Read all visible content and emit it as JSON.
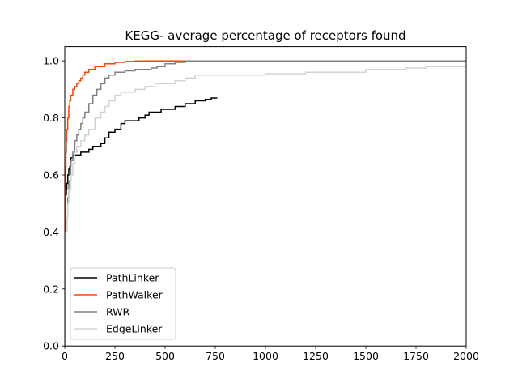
{
  "chart_data": {
    "type": "line",
    "title": "KEGG- average percentage of receptors found",
    "xlabel": "",
    "ylabel": "",
    "xlim": [
      0,
      2000
    ],
    "ylim": [
      0,
      1.05
    ],
    "xticks": [
      0,
      250,
      500,
      750,
      1000,
      1250,
      1500,
      1750,
      2000
    ],
    "yticks": [
      0.0,
      0.2,
      0.4,
      0.6,
      0.8,
      1.0
    ],
    "xtick_labels": [
      "0",
      "250",
      "500",
      "750",
      "1000",
      "1250",
      "1500",
      "1750",
      "2000"
    ],
    "ytick_labels": [
      "0.0",
      "0.2",
      "0.4",
      "0.6",
      "0.8",
      "1.0"
    ],
    "grid": false,
    "legend_position": "lower-left",
    "series": [
      {
        "name": "PathLinker",
        "color": "#000000",
        "x": [
          0,
          1,
          3,
          5,
          8,
          10,
          15,
          20,
          25,
          30,
          40,
          50,
          60,
          80,
          100,
          120,
          140,
          160,
          180,
          200,
          220,
          250,
          280,
          300,
          320,
          350,
          370,
          400,
          420,
          450,
          480,
          500,
          550,
          600,
          650,
          700,
          730,
          760
        ],
        "values": [
          0.0,
          0.45,
          0.5,
          0.53,
          0.55,
          0.57,
          0.6,
          0.62,
          0.63,
          0.66,
          0.67,
          0.67,
          0.67,
          0.68,
          0.68,
          0.69,
          0.7,
          0.7,
          0.71,
          0.73,
          0.75,
          0.76,
          0.78,
          0.79,
          0.79,
          0.79,
          0.8,
          0.81,
          0.82,
          0.82,
          0.83,
          0.83,
          0.84,
          0.85,
          0.86,
          0.865,
          0.87,
          0.87
        ]
      },
      {
        "name": "PathWalker",
        "color": "#ff4500",
        "x": [
          0,
          1,
          2,
          4,
          6,
          8,
          10,
          15,
          20,
          25,
          30,
          40,
          50,
          60,
          70,
          80,
          90,
          100,
          120,
          150,
          200,
          250,
          300,
          350,
          400,
          500,
          600,
          700,
          800,
          2000
        ],
        "values": [
          0.0,
          0.45,
          0.55,
          0.63,
          0.68,
          0.72,
          0.76,
          0.8,
          0.84,
          0.86,
          0.88,
          0.9,
          0.91,
          0.92,
          0.93,
          0.94,
          0.95,
          0.96,
          0.97,
          0.98,
          0.99,
          0.995,
          0.998,
          1.0,
          1.0,
          1.0,
          1.0,
          1.0,
          1.0,
          1.0
        ]
      },
      {
        "name": "RWR",
        "color": "#808080",
        "x": [
          0,
          2,
          5,
          10,
          15,
          20,
          30,
          40,
          50,
          60,
          70,
          80,
          90,
          100,
          120,
          140,
          160,
          180,
          200,
          220,
          250,
          300,
          350,
          400,
          430,
          460,
          500,
          550,
          600,
          700,
          800,
          1000,
          2000
        ],
        "values": [
          0.0,
          0.3,
          0.4,
          0.45,
          0.52,
          0.58,
          0.65,
          0.68,
          0.72,
          0.74,
          0.76,
          0.78,
          0.8,
          0.82,
          0.85,
          0.88,
          0.9,
          0.92,
          0.94,
          0.95,
          0.96,
          0.965,
          0.97,
          0.97,
          0.975,
          0.98,
          0.99,
          0.995,
          1.0,
          1.0,
          1.0,
          1.0,
          1.0
        ]
      },
      {
        "name": "EdgeLinker",
        "color": "#d3d3d3",
        "x": [
          0,
          1,
          3,
          5,
          10,
          15,
          20,
          30,
          40,
          50,
          60,
          80,
          100,
          120,
          150,
          180,
          200,
          220,
          250,
          280,
          300,
          350,
          400,
          450,
          500,
          550,
          600,
          650,
          700,
          800,
          900,
          1000,
          1200,
          1400,
          1500,
          1600,
          1700,
          1800,
          2000
        ],
        "values": [
          0.0,
          0.27,
          0.35,
          0.4,
          0.45,
          0.5,
          0.55,
          0.6,
          0.64,
          0.68,
          0.7,
          0.72,
          0.74,
          0.76,
          0.8,
          0.82,
          0.84,
          0.86,
          0.88,
          0.89,
          0.89,
          0.9,
          0.91,
          0.92,
          0.92,
          0.93,
          0.94,
          0.95,
          0.95,
          0.95,
          0.95,
          0.955,
          0.96,
          0.96,
          0.97,
          0.97,
          0.975,
          0.98,
          0.98
        ]
      }
    ]
  }
}
